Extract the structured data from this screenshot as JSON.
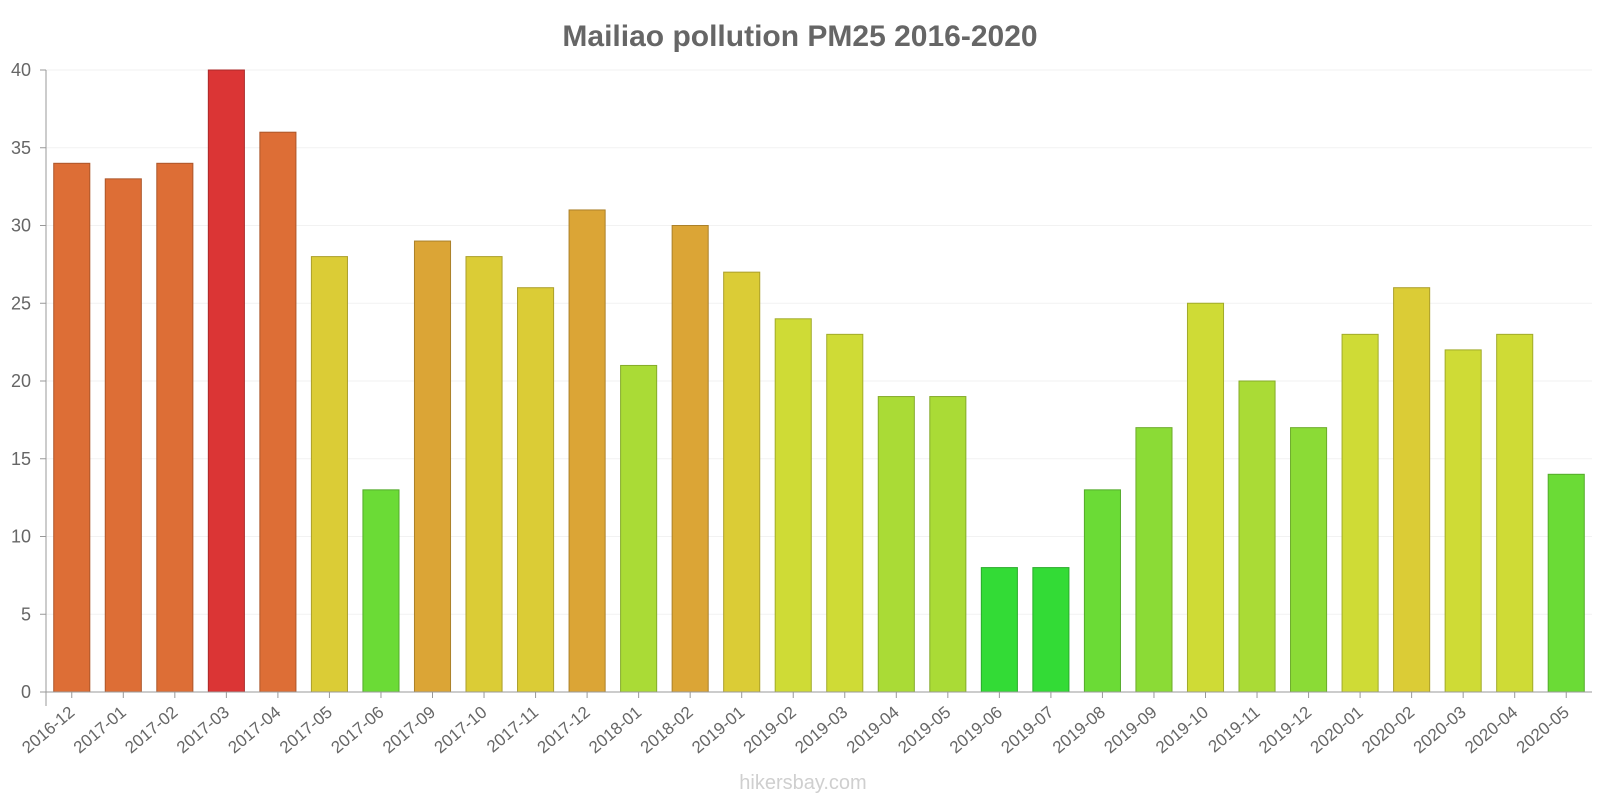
{
  "chart_data": {
    "type": "bar",
    "title": "Mailiao pollution PM25 2016-2020",
    "xlabel": "",
    "ylabel": "",
    "ylim": [
      0,
      40
    ],
    "yticks": [
      0,
      5,
      10,
      15,
      20,
      25,
      30,
      35,
      40
    ],
    "grid": true,
    "categories": [
      "2016-12",
      "2017-01",
      "2017-02",
      "2017-03",
      "2017-04",
      "2017-05",
      "2017-06",
      "2017-09",
      "2017-10",
      "2017-11",
      "2017-12",
      "2018-01",
      "2018-02",
      "2019-01",
      "2019-02",
      "2019-03",
      "2019-04",
      "2019-05",
      "2019-06",
      "2019-07",
      "2019-08",
      "2019-09",
      "2019-10",
      "2019-11",
      "2019-12",
      "2020-01",
      "2020-02",
      "2020-03",
      "2020-04",
      "2020-05"
    ],
    "values": [
      34,
      33,
      34,
      40,
      36,
      28,
      13,
      29,
      28,
      26,
      31,
      21,
      30,
      27,
      24,
      23,
      19,
      19,
      8,
      8,
      13,
      17,
      25,
      20,
      17,
      23,
      26,
      22,
      23,
      14
    ],
    "bar_colors": [
      "#dd6e36",
      "#dd6e36",
      "#dd6e36",
      "#db3535",
      "#dd6e36",
      "#dbcc36",
      "#6bdb36",
      "#dba536",
      "#dbcc36",
      "#dbcc36",
      "#dba536",
      "#aadb36",
      "#dba536",
      "#dbcc36",
      "#cfdb36",
      "#cfdb36",
      "#aadb36",
      "#aadb36",
      "#33db36",
      "#33db36",
      "#6bdb36",
      "#8bdb36",
      "#cfdb36",
      "#aadb36",
      "#8bdb36",
      "#cfdb36",
      "#dbcc36",
      "#cfdb36",
      "#cfdb36",
      "#6bdb36"
    ]
  },
  "watermark": "hikersbay.com"
}
